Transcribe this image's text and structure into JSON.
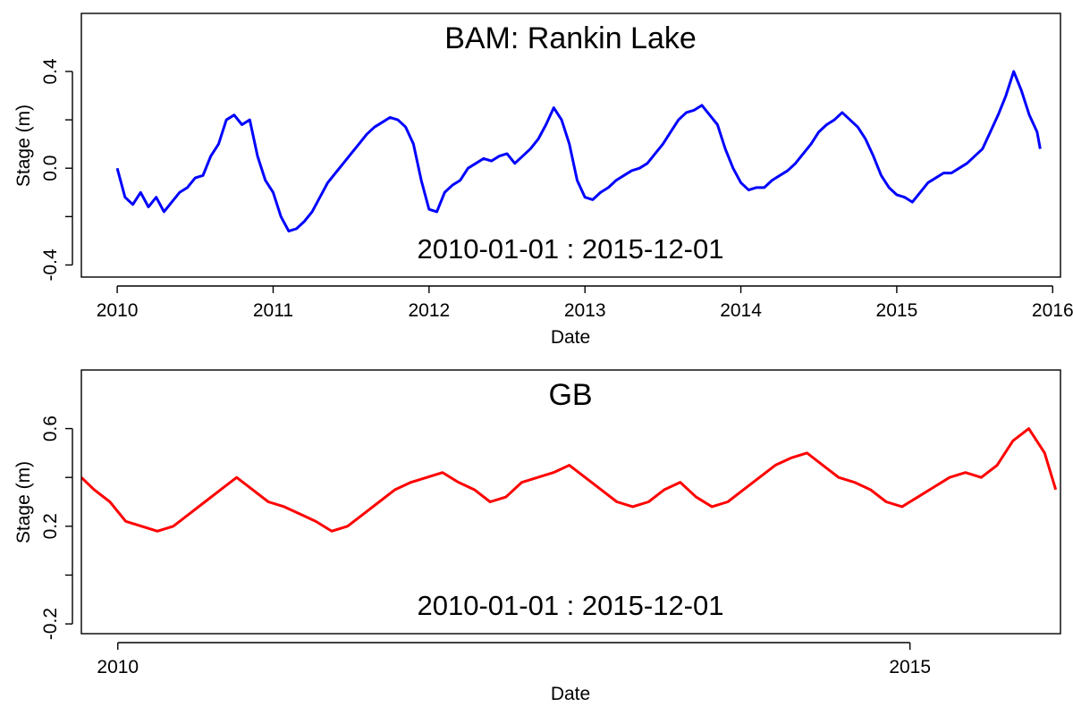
{
  "chart_data": [
    {
      "type": "line",
      "title": "BAM: Rankin Lake",
      "annotation": "2010-01-01  :  2015-12-01",
      "xlabel": "Date",
      "ylabel": "Stage (m)",
      "xlim": [
        2009.77,
        2016.05
      ],
      "ylim": [
        -0.45,
        0.64
      ],
      "xticks": [
        2010,
        2011,
        2012,
        2013,
        2014,
        2015,
        2016
      ],
      "xtick_labels": [
        "2010",
        "2011",
        "2012",
        "2013",
        "2014",
        "2015",
        "2016"
      ],
      "yticks": [
        -0.4,
        0.0,
        0.4
      ],
      "ytick_labels": [
        "-0.4",
        "0.0",
        "0.4"
      ],
      "grid": false,
      "series": [
        {
          "color": "#0000ff",
          "x": [
            2010.0,
            2010.05,
            2010.1,
            2010.15,
            2010.2,
            2010.25,
            2010.3,
            2010.35,
            2010.4,
            2010.45,
            2010.5,
            2010.55,
            2010.6,
            2010.65,
            2010.7,
            2010.75,
            2010.8,
            2010.85,
            2010.9,
            2010.95,
            2011.0,
            2011.05,
            2011.1,
            2011.15,
            2011.2,
            2011.25,
            2011.3,
            2011.35,
            2011.4,
            2011.45,
            2011.5,
            2011.55,
            2011.6,
            2011.65,
            2011.7,
            2011.75,
            2011.8,
            2011.85,
            2011.9,
            2011.95,
            2012.0,
            2012.05,
            2012.1,
            2012.15,
            2012.2,
            2012.25,
            2012.3,
            2012.35,
            2012.4,
            2012.45,
            2012.5,
            2012.55,
            2012.6,
            2012.65,
            2012.7,
            2012.75,
            2012.8,
            2012.85,
            2012.9,
            2012.95,
            2013.0,
            2013.05,
            2013.1,
            2013.15,
            2013.2,
            2013.25,
            2013.3,
            2013.35,
            2013.4,
            2013.45,
            2013.5,
            2013.55,
            2013.6,
            2013.65,
            2013.7,
            2013.75,
            2013.8,
            2013.85,
            2013.9,
            2013.95,
            2014.0,
            2014.05,
            2014.1,
            2014.15,
            2014.2,
            2014.25,
            2014.3,
            2014.35,
            2014.4,
            2014.45,
            2014.5,
            2014.55,
            2014.6,
            2014.65,
            2014.7,
            2014.75,
            2014.8,
            2014.85,
            2014.9,
            2014.95,
            2015.0,
            2015.05,
            2015.1,
            2015.15,
            2015.2,
            2015.25,
            2015.3,
            2015.35,
            2015.4,
            2015.45,
            2015.5,
            2015.55,
            2015.6,
            2015.65,
            2015.7,
            2015.75,
            2015.8,
            2015.85,
            2015.9,
            2015.92
          ],
          "y": [
            0.0,
            -0.12,
            -0.15,
            -0.1,
            -0.16,
            -0.12,
            -0.18,
            -0.14,
            -0.1,
            -0.08,
            -0.04,
            -0.03,
            0.05,
            0.1,
            0.2,
            0.22,
            0.18,
            0.2,
            0.05,
            -0.05,
            -0.1,
            -0.2,
            -0.26,
            -0.25,
            -0.22,
            -0.18,
            -0.12,
            -0.06,
            -0.02,
            0.02,
            0.06,
            0.1,
            0.14,
            0.17,
            0.19,
            0.21,
            0.2,
            0.17,
            0.1,
            -0.05,
            -0.17,
            -0.18,
            -0.1,
            -0.07,
            -0.05,
            0.0,
            0.02,
            0.04,
            0.03,
            0.05,
            0.06,
            0.02,
            0.05,
            0.08,
            0.12,
            0.18,
            0.25,
            0.2,
            0.1,
            -0.05,
            -0.12,
            -0.13,
            -0.1,
            -0.08,
            -0.05,
            -0.03,
            -0.01,
            0.0,
            0.02,
            0.06,
            0.1,
            0.15,
            0.2,
            0.23,
            0.24,
            0.26,
            0.22,
            0.18,
            0.08,
            0.0,
            -0.06,
            -0.09,
            -0.08,
            -0.08,
            -0.05,
            -0.03,
            -0.01,
            0.02,
            0.06,
            0.1,
            0.15,
            0.18,
            0.2,
            0.23,
            0.2,
            0.17,
            0.12,
            0.05,
            -0.03,
            -0.08,
            -0.11,
            -0.12,
            -0.14,
            -0.1,
            -0.06,
            -0.04,
            -0.02,
            -0.02,
            0.0,
            0.02,
            0.05,
            0.08,
            0.15,
            0.22,
            0.3,
            0.4,
            0.32,
            0.22,
            0.15,
            0.08
          ]
        }
      ]
    },
    {
      "type": "line",
      "title": "GB",
      "annotation": "2010-01-01  :  2015-12-01",
      "xlabel": "Date",
      "ylabel": "Stage (m)",
      "xlim": [
        2009.77,
        2015.95
      ],
      "ylim": [
        -0.24,
        0.84
      ],
      "xticks": [
        2010,
        2015
      ],
      "xtick_labels": [
        "2010",
        "2015"
      ],
      "yticks": [
        -0.2,
        0.2,
        0.6
      ],
      "ytick_labels": [
        "-0.2",
        "0.2",
        "0.6"
      ],
      "grid": false,
      "series": [
        {
          "color": "#ff0000",
          "x": [
            2009.77,
            2009.85,
            2009.95,
            2010.05,
            2010.15,
            2010.25,
            2010.35,
            2010.45,
            2010.55,
            2010.65,
            2010.75,
            2010.85,
            2010.95,
            2011.05,
            2011.15,
            2011.25,
            2011.35,
            2011.45,
            2011.55,
            2011.65,
            2011.75,
            2011.85,
            2011.95,
            2012.05,
            2012.15,
            2012.25,
            2012.35,
            2012.45,
            2012.55,
            2012.65,
            2012.75,
            2012.85,
            2012.95,
            2013.05,
            2013.15,
            2013.25,
            2013.35,
            2013.45,
            2013.55,
            2013.65,
            2013.75,
            2013.85,
            2013.95,
            2014.05,
            2014.15,
            2014.25,
            2014.35,
            2014.45,
            2014.55,
            2014.65,
            2014.75,
            2014.85,
            2014.95,
            2015.05,
            2015.15,
            2015.25,
            2015.35,
            2015.45,
            2015.55,
            2015.65,
            2015.75,
            2015.85,
            2015.92
          ],
          "y": [
            0.4,
            0.35,
            0.3,
            0.22,
            0.2,
            0.18,
            0.2,
            0.25,
            0.3,
            0.35,
            0.4,
            0.35,
            0.3,
            0.28,
            0.25,
            0.22,
            0.18,
            0.2,
            0.25,
            0.3,
            0.35,
            0.38,
            0.4,
            0.42,
            0.38,
            0.35,
            0.3,
            0.32,
            0.38,
            0.4,
            0.42,
            0.45,
            0.4,
            0.35,
            0.3,
            0.28,
            0.3,
            0.35,
            0.38,
            0.32,
            0.28,
            0.3,
            0.35,
            0.4,
            0.45,
            0.48,
            0.5,
            0.45,
            0.4,
            0.38,
            0.35,
            0.3,
            0.28,
            0.32,
            0.36,
            0.4,
            0.42,
            0.4,
            0.45,
            0.55,
            0.6,
            0.5,
            0.35
          ]
        }
      ]
    }
  ]
}
